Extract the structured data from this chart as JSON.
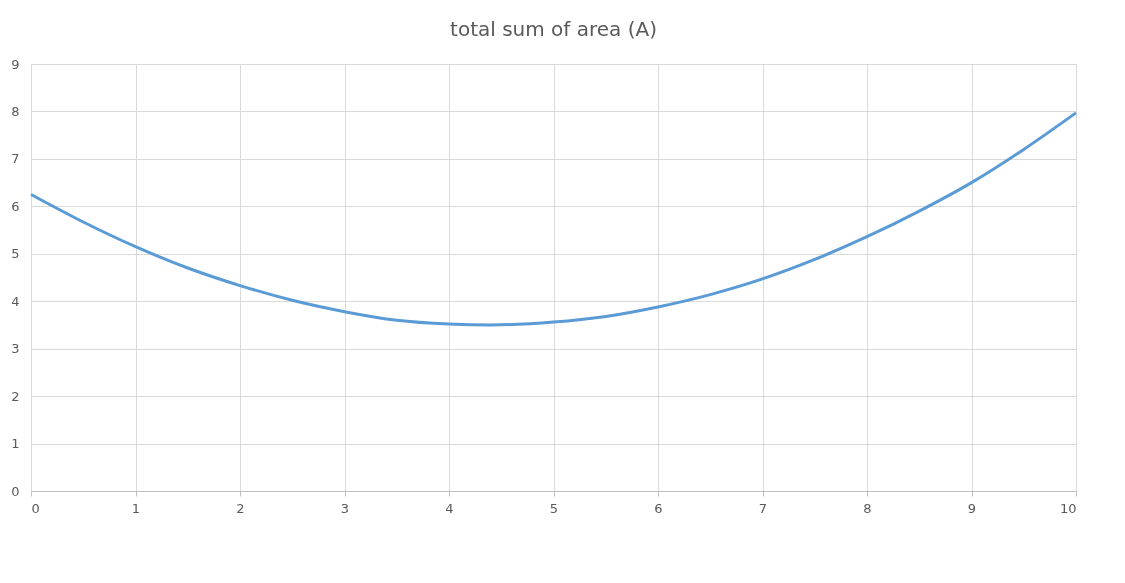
{
  "chart_data": {
    "type": "line",
    "title": "total sum of area (A)",
    "x": [
      0,
      0.5,
      1,
      1.5,
      2,
      2.5,
      3,
      3.5,
      4,
      4.4,
      5,
      5.5,
      6,
      6.5,
      7,
      7.5,
      8,
      8.5,
      9,
      9.5,
      10
    ],
    "series": [
      {
        "color": "#5b9bd5",
        "values": [
          6.25,
          5.67,
          5.15,
          4.7,
          4.33,
          4.02,
          3.78,
          3.6,
          3.52,
          3.5,
          3.56,
          3.68,
          3.88,
          4.14,
          4.47,
          4.88,
          5.36,
          5.9,
          6.5,
          7.2,
          7.97
        ]
      }
    ],
    "xlim": [
      0,
      10
    ],
    "xticks": [
      0,
      1,
      2,
      3,
      4,
      5,
      6,
      7,
      8,
      9,
      10
    ],
    "ylim": [
      0,
      9
    ],
    "yticks": [
      0,
      1,
      2,
      3,
      4,
      5,
      6,
      7,
      8,
      9
    ],
    "grid": true,
    "legend": false,
    "marker": "none",
    "line_style": "solid"
  }
}
